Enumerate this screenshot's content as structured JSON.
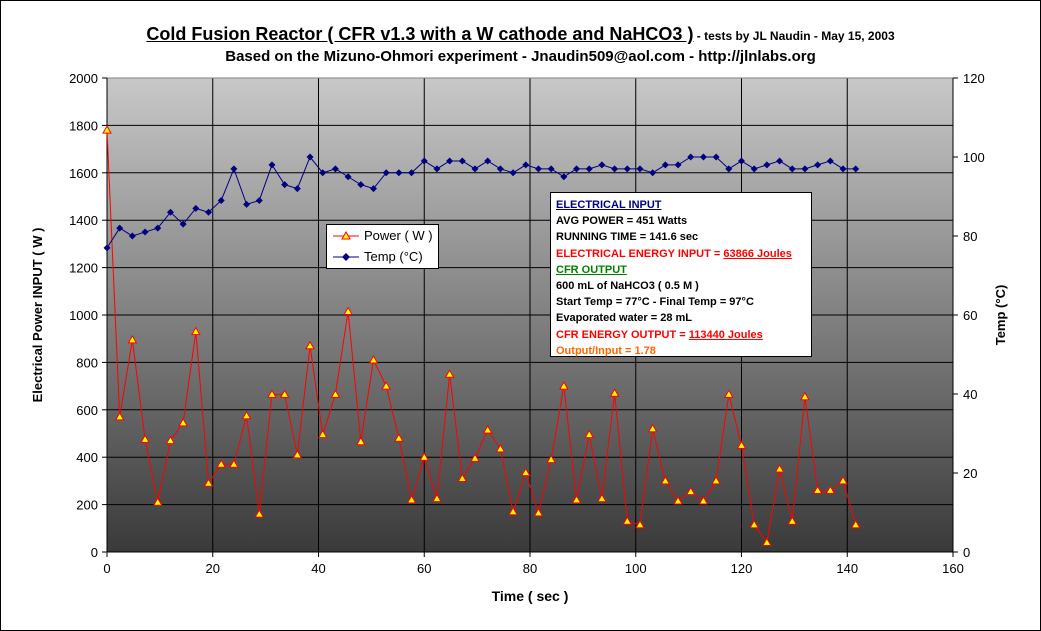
{
  "header": {
    "title_main": "Cold Fusion Reactor ( CFR v1.3 with a W cathode and NaHCO3 )",
    "title_suffix": " - tests by JL Naudin - May 15, 2003",
    "subtitle": "Based on the Mizuno-Ohmori experiment - Jnaudin509@aol.com - http://jlnlabs.org"
  },
  "info_box": {
    "electrical_input_heading": "ELECTRICAL INPUT",
    "avg_power": "AVG POWER = 451 Watts",
    "running_time": "RUNNING TIME = 141.6 sec",
    "energy_input_label": "ELECTRICAL  ENERGY INPUT = ",
    "energy_input_value": "63866 Joules",
    "cfr_output_heading": "CFR OUTPUT",
    "solution": "600 mL of NaHCO3 ( 0.5 M )",
    "temps": "Start Temp = 77°C - Final Temp = 97°C",
    "evaporated": "Evaporated water = 28 mL",
    "energy_output_label": "CFR ENERGY OUTPUT = ",
    "energy_output_value": "113440 Joules",
    "ratio": "Output/Input = 1.78"
  },
  "chart_data": {
    "type": "line",
    "xlabel": "Time ( sec )",
    "ylabel": "Electrical Power INPUT ( W )",
    "y2label": "Temp (°C)",
    "xlim": [
      0,
      160
    ],
    "ylim": [
      0,
      2000
    ],
    "y2lim": [
      0,
      120
    ],
    "xticks": [
      0,
      20,
      40,
      60,
      80,
      100,
      120,
      140,
      160
    ],
    "yticks": [
      0,
      200,
      400,
      600,
      800,
      1000,
      1200,
      1400,
      1600,
      1800,
      2000
    ],
    "y2ticks": [
      0,
      20,
      40,
      60,
      80,
      100,
      120
    ],
    "grid": true,
    "legend": "left-center",
    "background": "gradient grey",
    "series": [
      {
        "name": "Power ( W )",
        "axis": "left",
        "color": "#ff0000",
        "marker": "triangle",
        "marker_color": "#ffff00",
        "x": [
          0,
          2.4,
          4.8,
          7.2,
          9.6,
          12,
          14.4,
          16.8,
          19.2,
          21.6,
          24,
          26.4,
          28.8,
          31.2,
          33.6,
          36,
          38.4,
          40.8,
          43.2,
          45.6,
          48,
          50.4,
          52.8,
          55.2,
          57.6,
          60,
          62.4,
          64.8,
          67.2,
          69.6,
          72,
          74.4,
          76.8,
          79.2,
          81.6,
          84,
          86.4,
          88.8,
          91.2,
          93.6,
          96,
          98.4,
          100.8,
          103.2,
          105.6,
          108,
          110.4,
          112.8,
          115.2,
          117.6,
          120,
          122.4,
          124.8,
          127.2,
          129.6,
          132,
          134.4,
          136.8,
          139.2,
          141.6
        ],
        "y": [
          1780,
          570,
          895,
          475,
          210,
          470,
          545,
          930,
          290,
          370,
          370,
          575,
          160,
          665,
          665,
          410,
          870,
          495,
          665,
          1015,
          465,
          810,
          700,
          480,
          220,
          400,
          225,
          750,
          310,
          395,
          515,
          435,
          170,
          335,
          165,
          390,
          700,
          220,
          495,
          225,
          670,
          130,
          115,
          520,
          300,
          215,
          255,
          215,
          300,
          665,
          450,
          115,
          40,
          350,
          130,
          655,
          260,
          260,
          300,
          115
        ]
      },
      {
        "name": "Temp (°C)",
        "axis": "right",
        "color": "#000080",
        "marker": "diamond",
        "marker_color": "#000080",
        "x": [
          0,
          2.4,
          4.8,
          7.2,
          9.6,
          12,
          14.4,
          16.8,
          19.2,
          21.6,
          24,
          26.4,
          28.8,
          31.2,
          33.6,
          36,
          38.4,
          40.8,
          43.2,
          45.6,
          48,
          50.4,
          52.8,
          55.2,
          57.6,
          60,
          62.4,
          64.8,
          67.2,
          69.6,
          72,
          74.4,
          76.8,
          79.2,
          81.6,
          84,
          86.4,
          88.8,
          91.2,
          93.6,
          96,
          98.4,
          100.8,
          103.2,
          105.6,
          108,
          110.4,
          112.8,
          115.2,
          117.6,
          120,
          122.4,
          124.8,
          127.2,
          129.6,
          132,
          134.4,
          136.8,
          139.2,
          141.6
        ],
        "y": [
          77,
          82,
          80,
          81,
          82,
          86,
          83,
          87,
          86,
          89,
          97,
          88,
          89,
          98,
          93,
          92,
          100,
          96,
          97,
          95,
          93,
          92,
          96,
          96,
          96,
          99,
          97,
          99,
          99,
          97,
          99,
          97,
          96,
          98,
          97,
          97,
          95,
          97,
          97,
          98,
          97,
          97,
          97,
          96,
          98,
          98,
          100,
          100,
          100,
          97,
          99,
          97,
          98,
          99,
          97,
          97,
          98,
          99,
          97,
          97
        ]
      }
    ]
  }
}
